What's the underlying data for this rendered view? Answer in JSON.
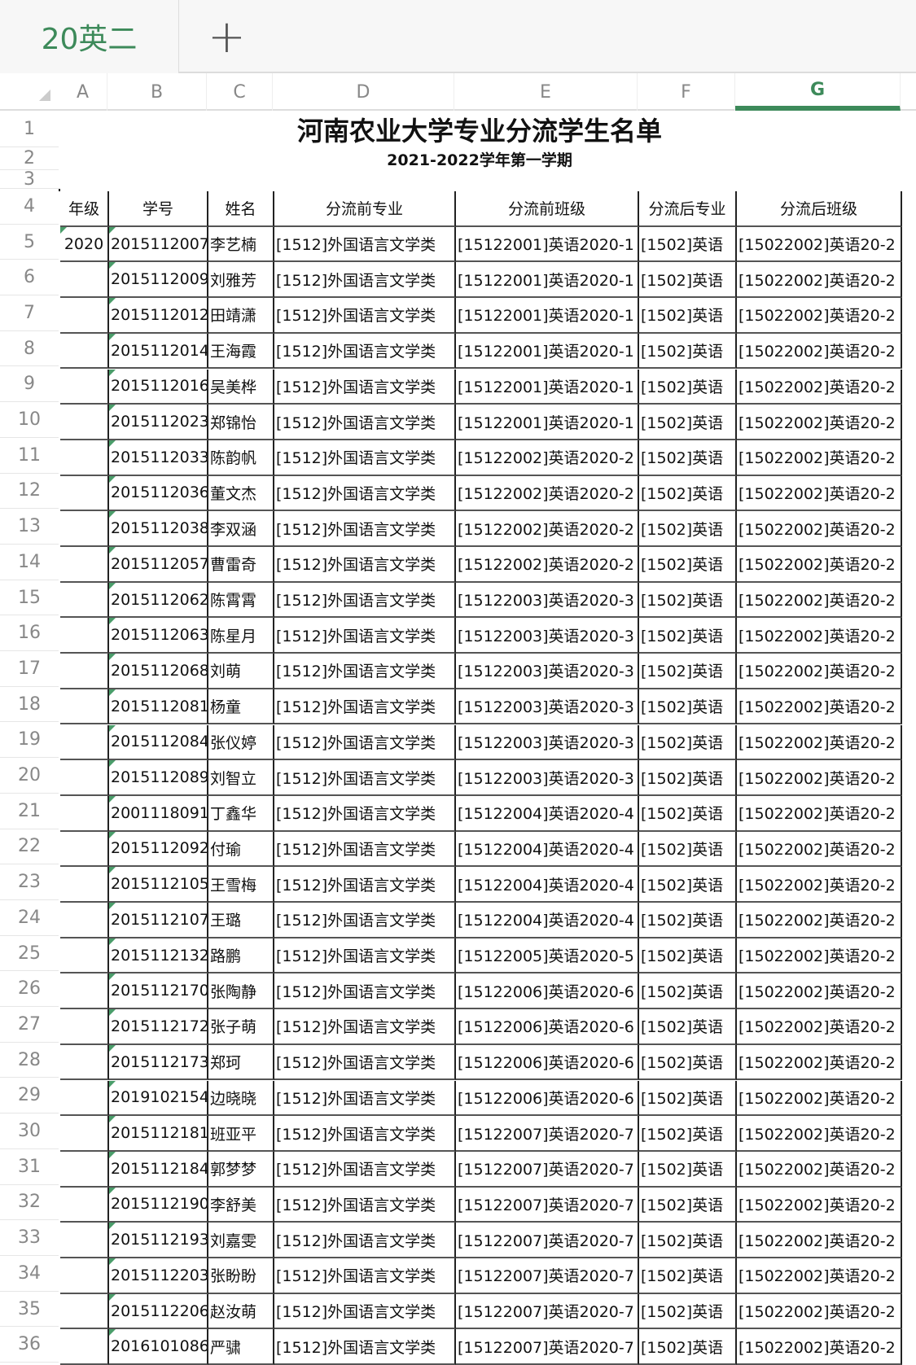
{
  "sheet_tab": {
    "label": "20英二",
    "add_icon": "plus-icon"
  },
  "column_letters": [
    "A",
    "B",
    "C",
    "D",
    "E",
    "F",
    "G"
  ],
  "selected_column": "G",
  "accent_color": "#3d8a5a",
  "title": "河南农业大学专业分流学生名单",
  "subtitle": "2021-2022学年第一学期",
  "headers": [
    "年级",
    "学号",
    "姓名",
    "分流前专业",
    "分流前班级",
    "分流后专业",
    "分流后班级"
  ],
  "rows": [
    {
      "grade": "2020",
      "id": "2015112007",
      "name": "李艺楠",
      "pre_major": "[1512]外国语言文学类",
      "pre_class": "[15122001]英语2020-1",
      "post_major": "[1502]英语",
      "post_class": "[15022002]英语20-2"
    },
    {
      "grade": "",
      "id": "2015112009",
      "name": "刘雅芳",
      "pre_major": "[1512]外国语言文学类",
      "pre_class": "[15122001]英语2020-1",
      "post_major": "[1502]英语",
      "post_class": "[15022002]英语20-2"
    },
    {
      "grade": "",
      "id": "2015112012",
      "name": "田靖潇",
      "pre_major": "[1512]外国语言文学类",
      "pre_class": "[15122001]英语2020-1",
      "post_major": "[1502]英语",
      "post_class": "[15022002]英语20-2"
    },
    {
      "grade": "",
      "id": "2015112014",
      "name": "王海霞",
      "pre_major": "[1512]外国语言文学类",
      "pre_class": "[15122001]英语2020-1",
      "post_major": "[1502]英语",
      "post_class": "[15022002]英语20-2"
    },
    {
      "grade": "",
      "id": "2015112016",
      "name": "吴美桦",
      "pre_major": "[1512]外国语言文学类",
      "pre_class": "[15122001]英语2020-1",
      "post_major": "[1502]英语",
      "post_class": "[15022002]英语20-2"
    },
    {
      "grade": "",
      "id": "2015112023",
      "name": "郑锦怡",
      "pre_major": "[1512]外国语言文学类",
      "pre_class": "[15122001]英语2020-1",
      "post_major": "[1502]英语",
      "post_class": "[15022002]英语20-2"
    },
    {
      "grade": "",
      "id": "2015112033",
      "name": "陈韵帆",
      "pre_major": "[1512]外国语言文学类",
      "pre_class": "[15122002]英语2020-2",
      "post_major": "[1502]英语",
      "post_class": "[15022002]英语20-2"
    },
    {
      "grade": "",
      "id": "2015112036",
      "name": "董文杰",
      "pre_major": "[1512]外国语言文学类",
      "pre_class": "[15122002]英语2020-2",
      "post_major": "[1502]英语",
      "post_class": "[15022002]英语20-2"
    },
    {
      "grade": "",
      "id": "2015112038",
      "name": "李双涵",
      "pre_major": "[1512]外国语言文学类",
      "pre_class": "[15122002]英语2020-2",
      "post_major": "[1502]英语",
      "post_class": "[15022002]英语20-2"
    },
    {
      "grade": "",
      "id": "2015112057",
      "name": "曹雷奇",
      "pre_major": "[1512]外国语言文学类",
      "pre_class": "[15122002]英语2020-2",
      "post_major": "[1502]英语",
      "post_class": "[15022002]英语20-2"
    },
    {
      "grade": "",
      "id": "2015112062",
      "name": "陈霄霄",
      "pre_major": "[1512]外国语言文学类",
      "pre_class": "[15122003]英语2020-3",
      "post_major": "[1502]英语",
      "post_class": "[15022002]英语20-2"
    },
    {
      "grade": "",
      "id": "2015112063",
      "name": "陈星月",
      "pre_major": "[1512]外国语言文学类",
      "pre_class": "[15122003]英语2020-3",
      "post_major": "[1502]英语",
      "post_class": "[15022002]英语20-2"
    },
    {
      "grade": "",
      "id": "2015112068",
      "name": "刘萌",
      "pre_major": "[1512]外国语言文学类",
      "pre_class": "[15122003]英语2020-3",
      "post_major": "[1502]英语",
      "post_class": "[15022002]英语20-2"
    },
    {
      "grade": "",
      "id": "2015112081",
      "name": "杨童",
      "pre_major": "[1512]外国语言文学类",
      "pre_class": "[15122003]英语2020-3",
      "post_major": "[1502]英语",
      "post_class": "[15022002]英语20-2"
    },
    {
      "grade": "",
      "id": "2015112084",
      "name": "张仪婷",
      "pre_major": "[1512]外国语言文学类",
      "pre_class": "[15122003]英语2020-3",
      "post_major": "[1502]英语",
      "post_class": "[15022002]英语20-2"
    },
    {
      "grade": "",
      "id": "2015112089",
      "name": "刘智立",
      "pre_major": "[1512]外国语言文学类",
      "pre_class": "[15122003]英语2020-3",
      "post_major": "[1502]英语",
      "post_class": "[15022002]英语20-2"
    },
    {
      "grade": "",
      "id": "2001118091",
      "name": "丁鑫华",
      "pre_major": "[1512]外国语言文学类",
      "pre_class": "[15122004]英语2020-4",
      "post_major": "[1502]英语",
      "post_class": "[15022002]英语20-2"
    },
    {
      "grade": "",
      "id": "2015112092",
      "name": "付瑜",
      "pre_major": "[1512]外国语言文学类",
      "pre_class": "[15122004]英语2020-4",
      "post_major": "[1502]英语",
      "post_class": "[15022002]英语20-2"
    },
    {
      "grade": "",
      "id": "2015112105",
      "name": "王雪梅",
      "pre_major": "[1512]外国语言文学类",
      "pre_class": "[15122004]英语2020-4",
      "post_major": "[1502]英语",
      "post_class": "[15022002]英语20-2"
    },
    {
      "grade": "",
      "id": "2015112107",
      "name": "王璐",
      "pre_major": "[1512]外国语言文学类",
      "pre_class": "[15122004]英语2020-4",
      "post_major": "[1502]英语",
      "post_class": "[15022002]英语20-2"
    },
    {
      "grade": "",
      "id": "2015112132",
      "name": "路鹏",
      "pre_major": "[1512]外国语言文学类",
      "pre_class": "[15122005]英语2020-5",
      "post_major": "[1502]英语",
      "post_class": "[15022002]英语20-2"
    },
    {
      "grade": "",
      "id": "2015112170",
      "name": "张陶静",
      "pre_major": "[1512]外国语言文学类",
      "pre_class": "[15122006]英语2020-6",
      "post_major": "[1502]英语",
      "post_class": "[15022002]英语20-2"
    },
    {
      "grade": "",
      "id": "2015112172",
      "name": "张子萌",
      "pre_major": "[1512]外国语言文学类",
      "pre_class": "[15122006]英语2020-6",
      "post_major": "[1502]英语",
      "post_class": "[15022002]英语20-2"
    },
    {
      "grade": "",
      "id": "2015112173",
      "name": "郑珂",
      "pre_major": "[1512]外国语言文学类",
      "pre_class": "[15122006]英语2020-6",
      "post_major": "[1502]英语",
      "post_class": "[15022002]英语20-2"
    },
    {
      "grade": "",
      "id": "2019102154",
      "name": "边晓晓",
      "pre_major": "[1512]外国语言文学类",
      "pre_class": "[15122006]英语2020-6",
      "post_major": "[1502]英语",
      "post_class": "[15022002]英语20-2"
    },
    {
      "grade": "",
      "id": "2015112181",
      "name": "班亚平",
      "pre_major": "[1512]外国语言文学类",
      "pre_class": "[15122007]英语2020-7",
      "post_major": "[1502]英语",
      "post_class": "[15022002]英语20-2"
    },
    {
      "grade": "",
      "id": "2015112184",
      "name": "郭梦梦",
      "pre_major": "[1512]外国语言文学类",
      "pre_class": "[15122007]英语2020-7",
      "post_major": "[1502]英语",
      "post_class": "[15022002]英语20-2"
    },
    {
      "grade": "",
      "id": "2015112190",
      "name": "李舒美",
      "pre_major": "[1512]外国语言文学类",
      "pre_class": "[15122007]英语2020-7",
      "post_major": "[1502]英语",
      "post_class": "[15022002]英语20-2"
    },
    {
      "grade": "",
      "id": "2015112193",
      "name": "刘嘉雯",
      "pre_major": "[1512]外国语言文学类",
      "pre_class": "[15122007]英语2020-7",
      "post_major": "[1502]英语",
      "post_class": "[15022002]英语20-2"
    },
    {
      "grade": "",
      "id": "2015112203",
      "name": "张盼盼",
      "pre_major": "[1512]外国语言文学类",
      "pre_class": "[15122007]英语2020-7",
      "post_major": "[1502]英语",
      "post_class": "[15022002]英语20-2"
    },
    {
      "grade": "",
      "id": "2015112206",
      "name": "赵汝萌",
      "pre_major": "[1512]外国语言文学类",
      "pre_class": "[15122007]英语2020-7",
      "post_major": "[1502]英语",
      "post_class": "[15022002]英语20-2"
    },
    {
      "grade": "",
      "id": "2016101086",
      "name": "严骕",
      "pre_major": "[1512]外国语言文学类",
      "pre_class": "[15122007]英语2020-7",
      "post_major": "[1502]英语",
      "post_class": "[15022002]英语20-2"
    }
  ]
}
